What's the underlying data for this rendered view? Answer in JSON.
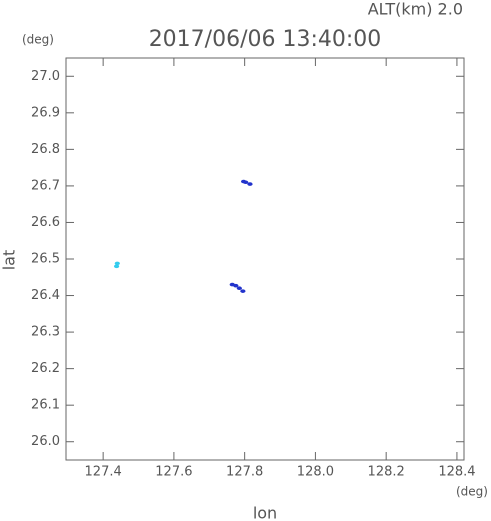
{
  "chart_data": {
    "type": "scatter",
    "title": "2017/06/06 13:40:00",
    "subtitle": "ALT(km) 2.0",
    "x_label": "lon",
    "y_label": "lat",
    "x_unit": "(deg)",
    "y_unit": "(deg)",
    "xlim": [
      127.295,
      128.42
    ],
    "ylim": [
      25.95,
      27.05
    ],
    "xticks": [
      127.4,
      127.6,
      127.8,
      {
        "value": 128,
        "label": "128.0"
      },
      128.2,
      128.4
    ],
    "yticks": [
      {
        "value": 26,
        "label": "26.0"
      },
      26.1,
      26.2,
      26.3,
      26.4,
      26.5,
      26.6,
      26.7,
      26.8,
      26.9,
      {
        "value": 27,
        "label": "27.0"
      }
    ],
    "series": [
      {
        "color": "#33ccee",
        "x": [
          127.44,
          127.438
        ],
        "y": [
          26.488,
          26.48
        ]
      },
      {
        "color": "#2233cc",
        "x": [
          127.797,
          127.803,
          127.815,
          127.765,
          127.775,
          127.785,
          127.795
        ],
        "y": [
          26.712,
          26.71,
          26.705,
          26.43,
          26.427,
          26.42,
          26.412
        ]
      }
    ]
  }
}
